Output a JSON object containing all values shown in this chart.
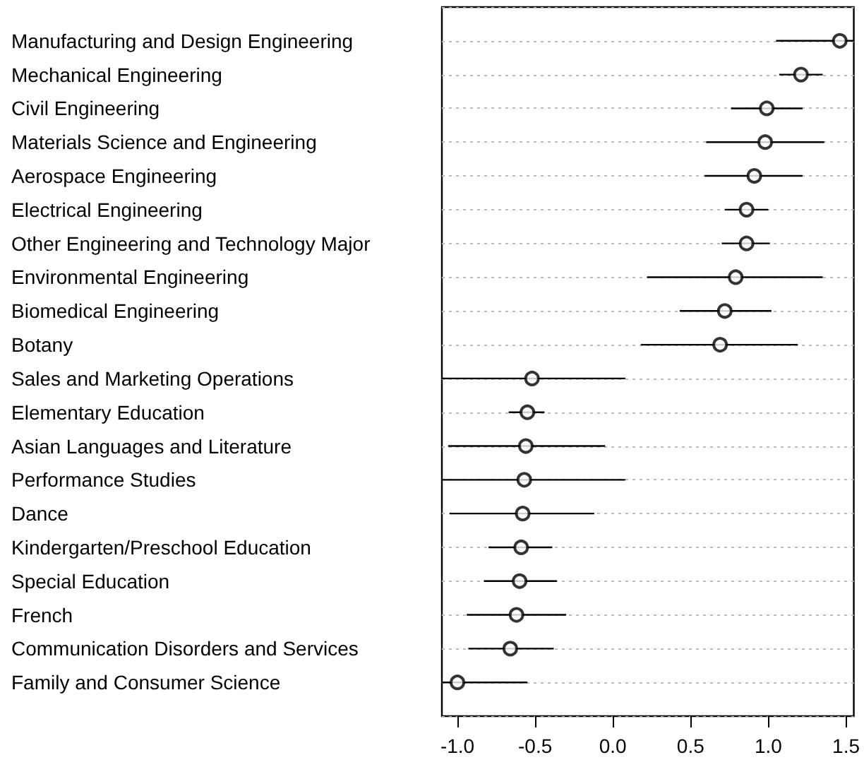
{
  "chart_data": {
    "type": "scatter",
    "orientation": "horizontal",
    "marker": "circle",
    "grid": "y",
    "color": "#000000",
    "categories": [
      "Manufacturing and Design Engineering",
      "Mechanical Engineering",
      "Civil Engineering",
      "Materials Science and Engineering",
      "Aerospace Engineering",
      "Electrical Engineering",
      "Other Engineering and Technology Major",
      "Environmental Engineering",
      "Biomedical Engineering",
      "Botany",
      "Sales and Marketing Operations",
      "Elementary Education",
      "Asian Languages and Literature",
      "Performance Studies",
      "Dance",
      "Kindergarten/Preschool Education",
      "Special Education",
      "French",
      "Communication Disorders and Services",
      "Family and Consumer Science"
    ],
    "values": [
      1.46,
      1.21,
      0.99,
      0.98,
      0.91,
      0.86,
      0.86,
      0.79,
      0.72,
      0.69,
      -0.52,
      -0.55,
      -0.56,
      -0.57,
      -0.58,
      -0.59,
      -0.6,
      -0.62,
      -0.66,
      -1.0
    ],
    "errors": [
      [
        1.05,
        1.55
      ],
      [
        1.07,
        1.35
      ],
      [
        0.76,
        1.22
      ],
      [
        0.6,
        1.36
      ],
      [
        0.59,
        1.22
      ],
      [
        0.72,
        1.0
      ],
      [
        0.7,
        1.01
      ],
      [
        0.22,
        1.35
      ],
      [
        0.43,
        1.02
      ],
      [
        0.18,
        1.19
      ],
      [
        -1.1,
        0.08
      ],
      [
        -0.67,
        -0.44
      ],
      [
        -1.06,
        -0.05
      ],
      [
        -1.1,
        0.08
      ],
      [
        -1.05,
        -0.12
      ],
      [
        -0.8,
        -0.39
      ],
      [
        -0.83,
        -0.36
      ],
      [
        -0.94,
        -0.3
      ],
      [
        -0.93,
        -0.38
      ],
      [
        -1.1,
        -0.55
      ]
    ],
    "xlim": [
      -1.1,
      1.55
    ],
    "xticks": [
      {
        "value": -1,
        "label": "-1.0"
      },
      {
        "value": -0.5,
        "label": "-0.5"
      },
      {
        "value": 0,
        "label": "0.0"
      },
      {
        "value": 0.5,
        "label": "0.5"
      },
      {
        "value": 1,
        "label": "1.0"
      },
      {
        "value": 1.5,
        "label": "1.5"
      }
    ]
  }
}
